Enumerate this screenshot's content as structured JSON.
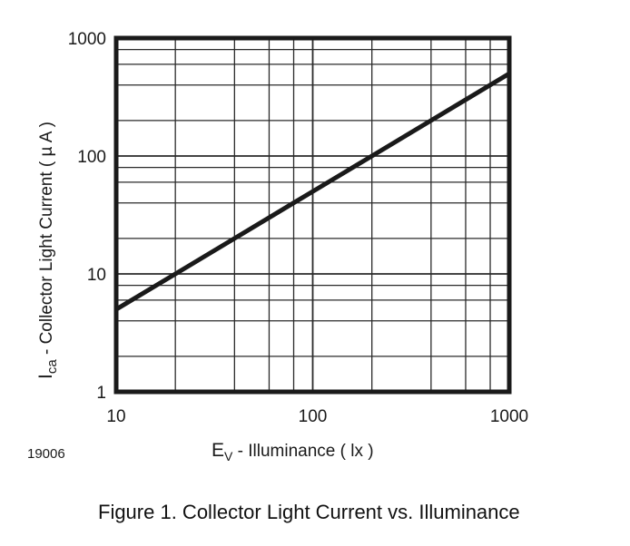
{
  "chart_data": {
    "type": "line",
    "title": "Figure 1. Collector Light Current vs. Illuminance",
    "xlabel": "E_v - Illuminance ( lx )",
    "ylabel": "I_ca - Collector Light Current ( µ A )",
    "xscale": "log",
    "yscale": "log",
    "xlim": [
      10,
      1000
    ],
    "ylim": [
      1,
      1000
    ],
    "x_ticks": [
      "10",
      "100",
      "1000"
    ],
    "y_ticks": [
      "1",
      "10",
      "100",
      "1000"
    ],
    "grid": true,
    "grid_minor_per_decade": [
      2,
      4,
      6,
      8
    ],
    "legend": null,
    "series": [
      {
        "name": "I_ca",
        "x": [
          10,
          20,
          40,
          80,
          100,
          200,
          400,
          1000
        ],
        "y": [
          5,
          10,
          20,
          40,
          50,
          100,
          200,
          500
        ]
      }
    ],
    "annotations": [
      "19006"
    ]
  },
  "labels": {
    "y_main": "I",
    "y_sub": "ca",
    "y_rest": " - Collector Light Current ( µ A )",
    "x_main": "E",
    "x_sub": "V",
    "x_rest": "  - Illuminance ( lx )",
    "figure_code": "19006",
    "caption": "Figure 1. Collector Light Current vs. Illuminance"
  },
  "style": {
    "line_color": "#1a1a1a",
    "grid_color": "#2a2a2a",
    "frame_color": "#1a1a1a"
  }
}
